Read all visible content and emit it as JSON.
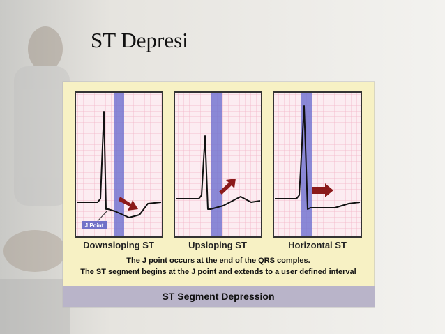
{
  "slide": {
    "title": "ST Depresi",
    "figure": {
      "j_point_label": "J Point",
      "panels": [
        "Downsloping ST",
        "Upsloping ST",
        "Horizontal ST"
      ],
      "notes": [
        "The J point occurs at the end of the QRS comples.",
        "The ST segment begins at the J point and extends to a user defined interval"
      ],
      "caption": "ST Segment Depression"
    }
  }
}
